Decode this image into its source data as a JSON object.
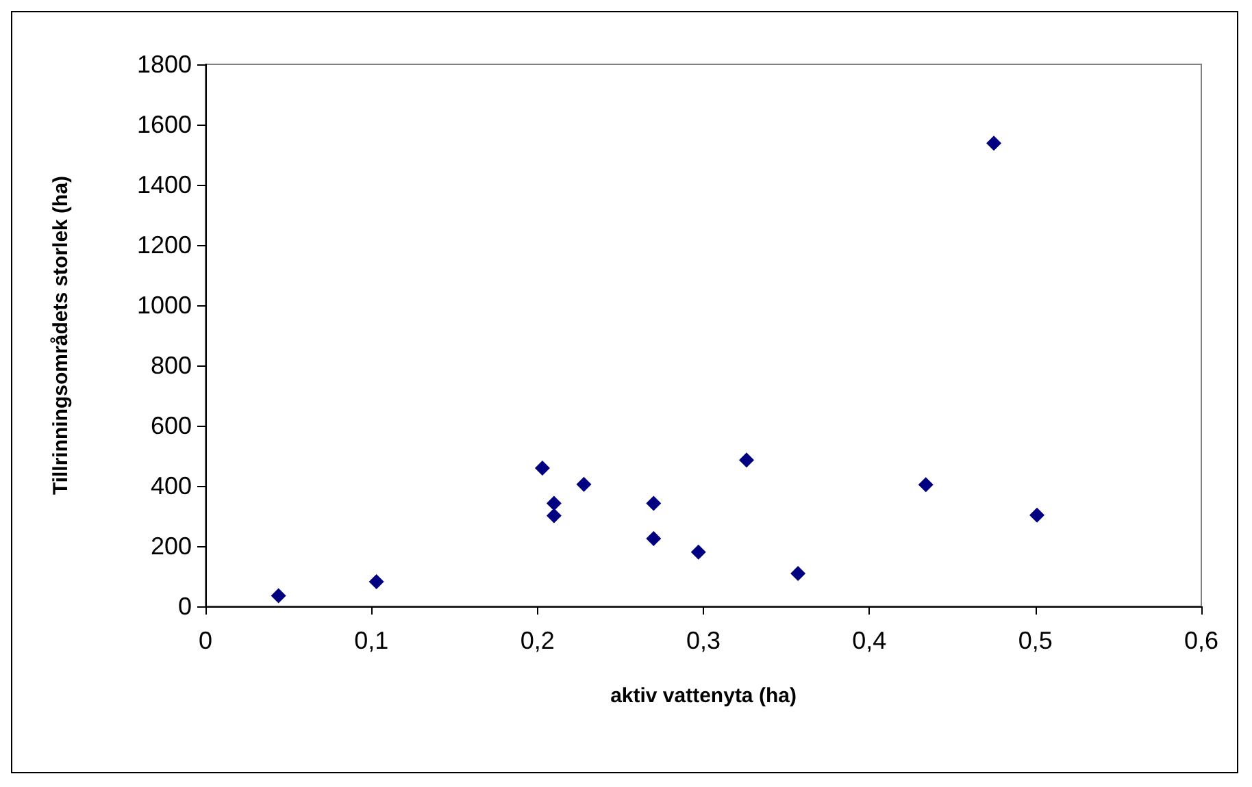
{
  "chart_data": {
    "type": "scatter",
    "xlabel": "aktiv vattenyta (ha)",
    "ylabel": "Tillrinningsområdets storlek (ha)",
    "x": [
      0.044,
      0.103,
      0.203,
      0.21,
      0.21,
      0.228,
      0.27,
      0.27,
      0.297,
      0.326,
      0.357,
      0.434,
      0.475,
      0.501
    ],
    "series": [
      {
        "color": "#000080",
        "values": [
          35,
          82,
          459,
          342,
          301,
          405,
          342,
          225,
          180,
          486,
          109,
          404,
          1538,
          303
        ]
      }
    ],
    "xlim": [
      0,
      0.6
    ],
    "xticks": [
      {
        "value": 0,
        "label": "0"
      },
      {
        "value": 0.1,
        "label": "0,1"
      },
      {
        "value": 0.2,
        "label": "0,2"
      },
      {
        "value": 0.3,
        "label": "0,3"
      },
      {
        "value": 0.4,
        "label": "0,4"
      },
      {
        "value": 0.5,
        "label": "0,5"
      },
      {
        "value": 0.6,
        "label": "0,6"
      }
    ],
    "ylim": [
      0,
      1800
    ],
    "yticks": [
      0,
      200,
      400,
      600,
      800,
      1000,
      1200,
      1400,
      1600,
      1800
    ],
    "grid": false,
    "marker": "diamond"
  }
}
